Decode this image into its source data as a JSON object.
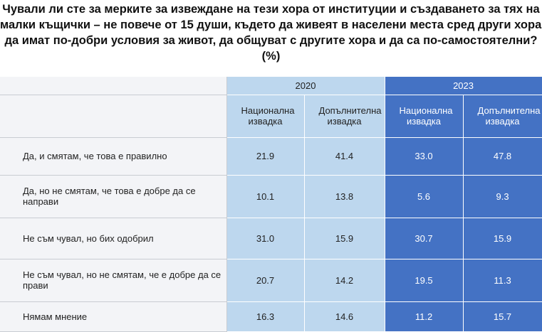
{
  "title_lines": [
    "Чували ли сте за мерките за извеждане на тези хора от институции и създаването за тях на",
    "малки къщички – не повече от 15 души, където да живеят в населени места сред други хора,",
    "да имат по-добри условия за живот, да общуват с другите хора и да са по-самостоятелни?",
    "(%)"
  ],
  "table": {
    "groups": [
      "2020",
      "2023"
    ],
    "columns": [
      "Национална извадка",
      "Допълнителна извадка",
      "Национална извадка",
      "Допълнителна извадка"
    ],
    "rows": [
      {
        "label": "Да, и смятам, че това е правилно",
        "values": [
          "21.9",
          "41.4",
          "33.0",
          "47.8"
        ]
      },
      {
        "label": "Да, но не смятам, че това е добре да се направи",
        "values": [
          "10.1",
          "13.8",
          "5.6",
          "9.3"
        ]
      },
      {
        "label": "Не съм чувал, но бих одобрил",
        "values": [
          "31.0",
          "15.9",
          "30.7",
          "15.9"
        ]
      },
      {
        "label": "Не съм чувал, но не смятам, че е добре да се прави",
        "values": [
          "20.7",
          "14.2",
          "19.5",
          "11.3"
        ]
      },
      {
        "label": "Нямам мнение",
        "values": [
          "16.3",
          "14.6",
          "11.2",
          "15.7"
        ]
      }
    ]
  }
}
